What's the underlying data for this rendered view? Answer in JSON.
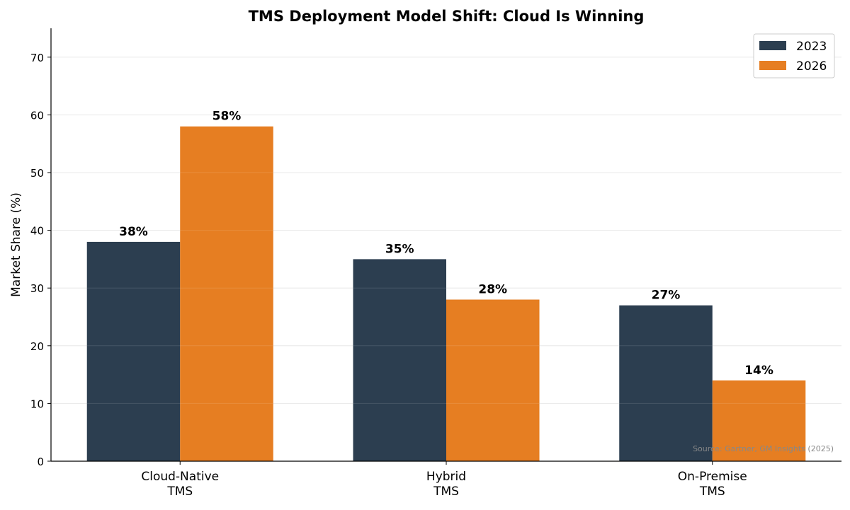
{
  "chart_data": {
    "type": "bar",
    "title": "TMS Deployment Model Shift: Cloud Is Winning",
    "xlabel": "",
    "ylabel": "Market Share (%)",
    "categories": [
      [
        "Cloud-Native",
        "TMS"
      ],
      [
        "Hybrid",
        "TMS"
      ],
      [
        "On-Premise",
        "TMS"
      ]
    ],
    "series": [
      {
        "name": "2023",
        "color": "#2c3e50",
        "values": [
          38,
          35,
          27
        ],
        "labels": [
          "38%",
          "35%",
          "27%"
        ]
      },
      {
        "name": "2026",
        "color": "#e67e22",
        "values": [
          58,
          28,
          14
        ],
        "labels": [
          "58%",
          "28%",
          "14%"
        ]
      }
    ],
    "ylim": [
      0,
      75
    ],
    "yticks": [
      0,
      10,
      20,
      30,
      40,
      50,
      60,
      70
    ],
    "grid": true,
    "legend_position": "top-right",
    "annotation": "Source: Gartner, GM Insights (2025)"
  }
}
